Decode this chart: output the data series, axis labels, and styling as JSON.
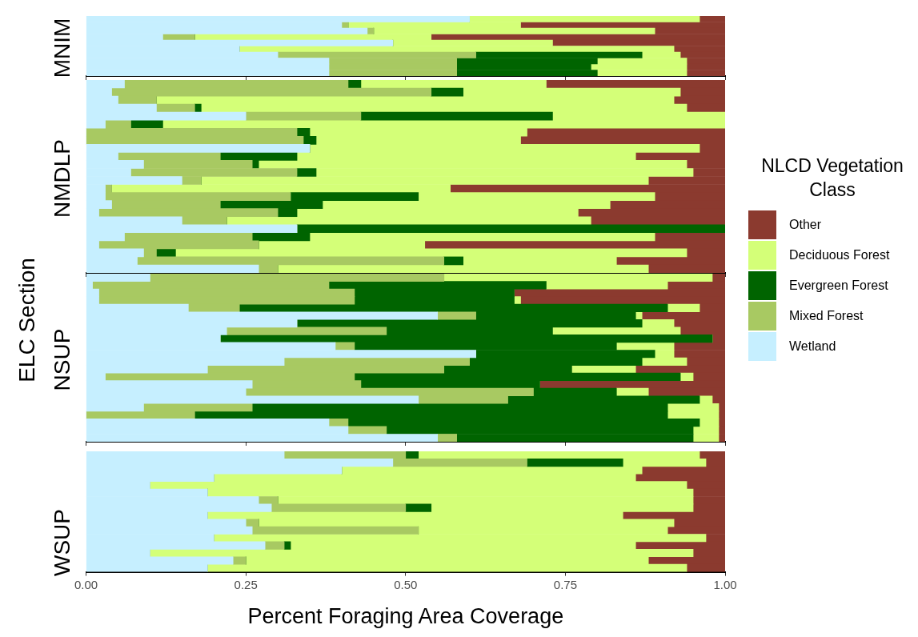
{
  "chart_data": [
    {
      "type": "bar",
      "orientation": "horizontal",
      "stacked": true,
      "title": "MNIM",
      "legend_title": "NLCD Vegetation Class",
      "legend": "right",
      "grid": false,
      "tick_labels": false,
      "categories": [
        null,
        null,
        null,
        null,
        null,
        null,
        null,
        null,
        null,
        null
      ],
      "xlim": [
        0,
        1
      ],
      "xticks": [
        {
          "value": 0,
          "label": null
        },
        {
          "value": 0.25,
          "label": null
        },
        {
          "value": 0.5,
          "label": null
        },
        {
          "value": 0.75,
          "label": null
        },
        {
          "value": 1,
          "label": null
        }
      ],
      "series": [
        {
          "name": "Wetland",
          "color": "#c6efff",
          "values": [
            0.6,
            0.4,
            0.44,
            0.12,
            0.48,
            0.24,
            0.3,
            0.38,
            0.38,
            0.38
          ]
        },
        {
          "name": "Mixed Forest",
          "color": "#a8c962",
          "values": [
            0,
            0.01,
            0.01,
            0.05,
            0,
            0,
            0.31,
            0.2,
            0.2,
            0.2
          ]
        },
        {
          "name": "Evergreen Forest",
          "color": "#006400",
          "values": [
            0,
            0,
            0,
            0,
            0,
            0,
            0.26,
            0.22,
            0.21,
            0.22
          ]
        },
        {
          "name": "Deciduous Forest",
          "color": "#d4ff78",
          "values": [
            0.36,
            0.27,
            0.44,
            0.37,
            0.25,
            0.68,
            0.06,
            0.14,
            0.15,
            0.14
          ]
        },
        {
          "name": "Other",
          "color": "#8b3a2f",
          "values": [
            0.04,
            0.32,
            0.11,
            0.46,
            0.27,
            0.08,
            0.07,
            0.06,
            0.06,
            0.06
          ]
        }
      ]
    },
    {
      "type": "bar",
      "orientation": "horizontal",
      "stacked": true,
      "title": "NMDLP",
      "grid": false,
      "tick_labels": false,
      "categories": [
        null,
        null,
        null,
        null,
        null,
        null,
        null,
        null,
        null,
        null,
        null,
        null,
        null,
        null,
        null,
        null,
        null,
        null,
        null,
        null,
        null,
        null,
        null,
        null
      ],
      "xlim": [
        0,
        1
      ],
      "xticks": [
        {
          "value": 0,
          "label": null
        },
        {
          "value": 0.25,
          "label": null
        },
        {
          "value": 0.5,
          "label": null
        },
        {
          "value": 0.75,
          "label": null
        },
        {
          "value": 1,
          "label": null
        }
      ],
      "series": [
        {
          "color": "#c6efff",
          "values": [
            0.06,
            0.04,
            0.05,
            0.11,
            0.25,
            0.03,
            0,
            0,
            0.35,
            0.05,
            0.09,
            0.07,
            0.15,
            0.03,
            0.03,
            0.04,
            0.02,
            0.15,
            0.33,
            0.06,
            0.02,
            0.09,
            0.08,
            0.27
          ]
        },
        {
          "color": "#a8c962",
          "values": [
            0.35,
            0.5,
            0.06,
            0.06,
            0.18,
            0.04,
            0.33,
            0.34,
            0,
            0.16,
            0.17,
            0.26,
            0.03,
            0.01,
            0.29,
            0.17,
            0.28,
            0.07,
            0,
            0.2,
            0.25,
            0.02,
            0.48,
            0.03
          ]
        },
        {
          "color": "#006400",
          "values": [
            0.02,
            0.05,
            0,
            0.01,
            0.3,
            0.05,
            0.02,
            0.02,
            0,
            0.12,
            0.01,
            0.03,
            0,
            0,
            0.2,
            0.16,
            0.03,
            0,
            0.67,
            0.09,
            0,
            0.03,
            0.03,
            0
          ]
        },
        {
          "color": "#d4ff78",
          "values": [
            0.29,
            0.34,
            0.81,
            0.76,
            0.27,
            0.88,
            0.34,
            0.32,
            0.61,
            0.53,
            0.67,
            0.59,
            0.7,
            0.53,
            0.37,
            0.45,
            0.44,
            0.57,
            0,
            0.54,
            0.26,
            0.8,
            0.24,
            0.58
          ]
        },
        {
          "color": "#8b3a2f",
          "values": [
            0.28,
            0.07,
            0.08,
            0.06,
            0,
            0,
            0.31,
            0.32,
            0.04,
            0.14,
            0.06,
            0.05,
            0.12,
            0.43,
            0.11,
            0.18,
            0.23,
            0.21,
            0,
            0.11,
            0.47,
            0.06,
            0.17,
            0.12
          ]
        }
      ]
    },
    {
      "type": "bar",
      "orientation": "horizontal",
      "stacked": true,
      "title": "NSUP",
      "ylabel": "ELC Section",
      "grid": false,
      "tick_labels": false,
      "categories": [
        null,
        null,
        null,
        null,
        null,
        null,
        null,
        null,
        null,
        null,
        null,
        null,
        null,
        null,
        null,
        null,
        null,
        null,
        null,
        null,
        null,
        null
      ],
      "xlim": [
        0,
        1
      ],
      "xticks": [
        {
          "value": 0,
          "label": null
        },
        {
          "value": 0.25,
          "label": null
        },
        {
          "value": 0.5,
          "label": null
        },
        {
          "value": 0.75,
          "label": null
        },
        {
          "value": 1,
          "label": null
        }
      ],
      "series": [
        {
          "color": "#c6efff",
          "values": [
            0.1,
            0.01,
            0.02,
            0.02,
            0.16,
            0.55,
            0.33,
            0.22,
            0.21,
            0.39,
            0.61,
            0.31,
            0.19,
            0.03,
            0.26,
            0.25,
            0.52,
            0.09,
            0,
            0.38,
            0.41,
            0.55
          ]
        },
        {
          "color": "#a8c962",
          "values": [
            0.46,
            0.37,
            0.4,
            0.4,
            0.08,
            0.06,
            0,
            0.25,
            0,
            0.03,
            0,
            0.29,
            0.37,
            0.39,
            0.17,
            0.45,
            0.14,
            0.17,
            0.17,
            0.03,
            0.06,
            0.03
          ]
        },
        {
          "color": "#006400",
          "values": [
            0,
            0.34,
            0.25,
            0.25,
            0.67,
            0.25,
            0.54,
            0.26,
            0.77,
            0.41,
            0.28,
            0.27,
            0.2,
            0.51,
            0.28,
            0.13,
            0.3,
            0.65,
            0.74,
            0.55,
            0.48,
            0.37
          ]
        },
        {
          "color": "#d4ff78",
          "values": [
            0.42,
            0.19,
            0,
            0.01,
            0.05,
            0.01,
            0.05,
            0.2,
            0,
            0.09,
            0.03,
            0.07,
            0.1,
            0.02,
            0,
            0.05,
            0.02,
            0.08,
            0.08,
            0.03,
            0.04,
            0.04
          ]
        },
        {
          "color": "#8b3a2f",
          "values": [
            0.02,
            0.09,
            0.33,
            0.32,
            0.04,
            0.13,
            0.08,
            0.07,
            0.02,
            0.08,
            0.08,
            0.06,
            0.14,
            0.05,
            0.29,
            0.12,
            0.02,
            0.01,
            0.01,
            0.01,
            0.01,
            0.01
          ]
        }
      ]
    },
    {
      "type": "bar",
      "orientation": "horizontal",
      "stacked": true,
      "title": "WSUP",
      "xlabel": "Percent Foraging Area Coverage",
      "grid": false,
      "tick_labels": "x",
      "categories": [
        null,
        null,
        null,
        null,
        null,
        null,
        null,
        null,
        null,
        null,
        null,
        null,
        null,
        null,
        null,
        null
      ],
      "xlim": [
        0,
        1
      ],
      "xticks": [
        {
          "value": 0,
          "label": "0.00"
        },
        {
          "value": 0.25,
          "label": "0.25"
        },
        {
          "value": 0.5,
          "label": "0.50"
        },
        {
          "value": 0.75,
          "label": "0.75"
        },
        {
          "value": 1,
          "label": "1.00"
        }
      ],
      "series": [
        {
          "color": "#c6efff",
          "values": [
            0.31,
            0.48,
            0.4,
            0.2,
            0.1,
            0.19,
            0.27,
            0.29,
            0.19,
            0.25,
            0.26,
            0.2,
            0.28,
            0.1,
            0.23,
            0.19
          ]
        },
        {
          "color": "#a8c962",
          "values": [
            0.19,
            0.21,
            0,
            0,
            0,
            0,
            0.03,
            0.21,
            0,
            0.02,
            0.26,
            0,
            0.03,
            0,
            0.02,
            0
          ]
        },
        {
          "color": "#006400",
          "values": [
            0.02,
            0.15,
            0,
            0,
            0,
            0,
            0,
            0.04,
            0,
            0,
            0,
            0,
            0.01,
            0,
            0,
            0
          ]
        },
        {
          "color": "#d4ff78",
          "values": [
            0.44,
            0.13,
            0.47,
            0.66,
            0.84,
            0.76,
            0.65,
            0.41,
            0.65,
            0.65,
            0.39,
            0.77,
            0.54,
            0.85,
            0.63,
            0.75
          ]
        },
        {
          "color": "#8b3a2f",
          "values": [
            0.04,
            0.03,
            0.13,
            0.14,
            0.06,
            0.05,
            0.05,
            0.05,
            0.16,
            0.08,
            0.09,
            0.03,
            0.14,
            0.05,
            0.12,
            0.06
          ]
        }
      ]
    }
  ]
}
